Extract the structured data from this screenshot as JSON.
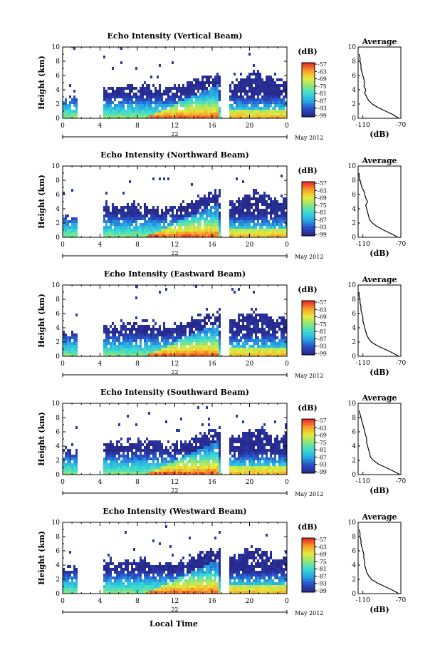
{
  "chart_data": [
    {
      "type": "heatmap",
      "title": "Echo Intensity (Vertical Beam)",
      "ylabel": "Height (km)",
      "xticks": [
        "0",
        "4",
        "8",
        "12",
        "16",
        "20",
        "0"
      ],
      "date_label": "22",
      "month_label": "May 2012",
      "yticks": [
        "0",
        "2",
        "4",
        "6",
        "8",
        "10"
      ],
      "xlim": [
        0,
        24
      ],
      "ylim": [
        0,
        10
      ],
      "colorbar": {
        "unit": "(dB)",
        "ticks": [
          "-57",
          "-63",
          "-69",
          "-75",
          "-81",
          "-87",
          "-93",
          "-99"
        ]
      },
      "average_profile": {
        "title": "Average",
        "xlabel": "(dB)",
        "xticks": [
          "-110",
          "-70"
        ],
        "yticks": [
          "0",
          "2",
          "4",
          "6",
          "8",
          "10"
        ],
        "height_km": [
          0,
          0.5,
          1,
          1.5,
          2,
          2.5,
          3,
          3.5,
          4,
          4.5,
          5,
          5.5,
          6,
          6.5,
          7,
          7.5,
          8,
          8.5,
          9
        ],
        "db": [
          -72,
          -78,
          -86,
          -94,
          -100,
          -104,
          -106,
          -108,
          -107,
          -109,
          -108,
          -109,
          -110,
          -111,
          -112,
          -112,
          -113,
          -113,
          -114
        ]
      }
    },
    {
      "type": "heatmap",
      "title": "Echo Intensity (Northward Beam)",
      "ylabel": "Height (km)",
      "xticks": [
        "0",
        "4",
        "8",
        "12",
        "16",
        "20",
        "0"
      ],
      "date_label": "22",
      "month_label": "May 2012",
      "yticks": [
        "0",
        "2",
        "4",
        "6",
        "8",
        "10"
      ],
      "xlim": [
        0,
        24
      ],
      "ylim": [
        0,
        10
      ],
      "colorbar": {
        "unit": "(dB)",
        "ticks": [
          "-57",
          "-63",
          "-69",
          "-75",
          "-81",
          "-87",
          "-93",
          "-99"
        ]
      },
      "average_profile": {
        "title": "Average",
        "xlabel": "(dB)",
        "xticks": [
          "-110",
          "-70"
        ],
        "yticks": [
          "0",
          "2",
          "4",
          "6",
          "8",
          "10"
        ],
        "height_km": [
          0,
          0.5,
          1,
          1.5,
          2,
          2.5,
          3,
          3.5,
          4,
          4.5,
          5,
          5.5,
          6,
          6.5,
          7,
          7.5,
          8,
          8.5,
          9
        ],
        "db": [
          -73,
          -80,
          -88,
          -95,
          -100,
          -103,
          -104,
          -105,
          -106,
          -107,
          -105,
          -107,
          -108,
          -109,
          -111,
          -112,
          -113,
          -114,
          -114
        ]
      }
    },
    {
      "type": "heatmap",
      "title": "Echo Intensity (Eastward Beam)",
      "ylabel": "Height (km)",
      "xticks": [
        "0",
        "4",
        "8",
        "12",
        "16",
        "20",
        "0"
      ],
      "date_label": "22",
      "month_label": "May 2012",
      "yticks": [
        "0",
        "2",
        "4",
        "6",
        "8",
        "10"
      ],
      "xlim": [
        0,
        24
      ],
      "ylim": [
        0,
        10
      ],
      "colorbar": {
        "unit": "(dB)",
        "ticks": [
          "-57",
          "-63",
          "-69",
          "-75",
          "-81",
          "-87",
          "-93",
          "-99"
        ]
      },
      "average_profile": {
        "title": "Average",
        "xlabel": "(dB)",
        "xticks": [
          "-110",
          "-70"
        ],
        "yticks": [
          "0",
          "2",
          "4",
          "6",
          "8",
          "10"
        ],
        "height_km": [
          0,
          0.5,
          1,
          1.5,
          2,
          2.5,
          3,
          3.5,
          4,
          4.5,
          5,
          5.5,
          6,
          6.5,
          7,
          7.5,
          8,
          8.5,
          9
        ],
        "db": [
          -72,
          -79,
          -87,
          -95,
          -101,
          -104,
          -106,
          -107,
          -108,
          -109,
          -110,
          -110,
          -111,
          -112,
          -112,
          -113,
          -113,
          -114,
          -114
        ]
      }
    },
    {
      "type": "heatmap",
      "title": "Echo Intensity (Southward Beam)",
      "ylabel": "Height (km)",
      "xticks": [
        "0",
        "4",
        "8",
        "12",
        "16",
        "20",
        "0"
      ],
      "date_label": "22",
      "month_label": "May 2012",
      "yticks": [
        "0",
        "2",
        "4",
        "6",
        "8",
        "10"
      ],
      "xlim": [
        0,
        24
      ],
      "ylim": [
        0,
        10
      ],
      "colorbar": {
        "unit": "(dB)",
        "ticks": [
          "-57",
          "-63",
          "-69",
          "-75",
          "-81",
          "-87",
          "-93",
          "-99"
        ]
      },
      "average_profile": {
        "title": "Average",
        "xlabel": "(dB)",
        "xticks": [
          "-110",
          "-70"
        ],
        "yticks": [
          "0",
          "2",
          "4",
          "6",
          "8",
          "10"
        ],
        "height_km": [
          0,
          0.5,
          1,
          1.5,
          2,
          2.5,
          3,
          3.5,
          4,
          4.5,
          5,
          5.5,
          6,
          6.5,
          7,
          7.5,
          8,
          8.5,
          9
        ],
        "db": [
          -71,
          -78,
          -86,
          -94,
          -99,
          -102,
          -103,
          -104,
          -105,
          -106,
          -106,
          -107,
          -108,
          -109,
          -110,
          -111,
          -112,
          -113,
          -114
        ]
      }
    },
    {
      "type": "heatmap",
      "title": "Echo Intensity (Westward Beam)",
      "ylabel": "Height (km)",
      "xticks": [
        "0",
        "4",
        "8",
        "12",
        "16",
        "20",
        "0"
      ],
      "date_label": "22",
      "month_label": "May 2012",
      "yticks": [
        "0",
        "2",
        "4",
        "6",
        "8",
        "10"
      ],
      "xlim": [
        0,
        24
      ],
      "ylim": [
        0,
        10
      ],
      "colorbar": {
        "unit": "(dB)",
        "ticks": [
          "-57",
          "-63",
          "-69",
          "-75",
          "-81",
          "-87",
          "-93",
          "-99"
        ]
      },
      "average_profile": {
        "title": "Average",
        "xlabel": "(dB)",
        "xticks": [
          "-110",
          "-70"
        ],
        "yticks": [
          "0",
          "2",
          "4",
          "6",
          "8",
          "10"
        ],
        "height_km": [
          0,
          0.5,
          1,
          1.5,
          2,
          2.5,
          3,
          3.5,
          4,
          4.5,
          5,
          5.5,
          6,
          6.5,
          7,
          7.5,
          8,
          8.5,
          9
        ],
        "db": [
          -72,
          -79,
          -87,
          -95,
          -101,
          -104,
          -106,
          -107,
          -108,
          -108,
          -109,
          -109,
          -110,
          -111,
          -112,
          -112,
          -113,
          -113,
          -114
        ]
      }
    }
  ],
  "footer": {
    "xlabel": "Local Time"
  }
}
